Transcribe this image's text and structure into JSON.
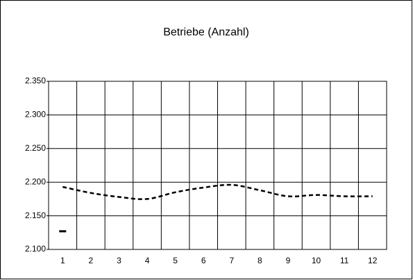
{
  "chart_data": {
    "type": "line",
    "title": "Betriebe (Anzahl)",
    "categories": [
      "1",
      "2",
      "3",
      "4",
      "5",
      "6",
      "7",
      "8",
      "9",
      "10",
      "11",
      "12"
    ],
    "series": [
      {
        "color": "#000000",
        "style": "dashed",
        "values": [
          2193,
          2184,
          2178,
          2175,
          2185,
          2192,
          2196,
          2188,
          2179,
          2181,
          2179,
          2179
        ]
      },
      {
        "color": "#000000",
        "style": "marker",
        "values": [
          2127,
          null,
          null,
          null,
          null,
          null,
          null,
          null,
          null,
          null,
          null,
          null
        ]
      }
    ],
    "ylim": [
      2100,
      2350
    ],
    "yticks": [
      {
        "value": 2100,
        "label": "2.100"
      },
      {
        "value": 2150,
        "label": "2.150"
      },
      {
        "value": 2200,
        "label": "2.200"
      },
      {
        "value": 2250,
        "label": "2.250"
      },
      {
        "value": 2300,
        "label": "2.300"
      },
      {
        "value": 2350,
        "label": "2.350"
      }
    ],
    "grid": true
  }
}
